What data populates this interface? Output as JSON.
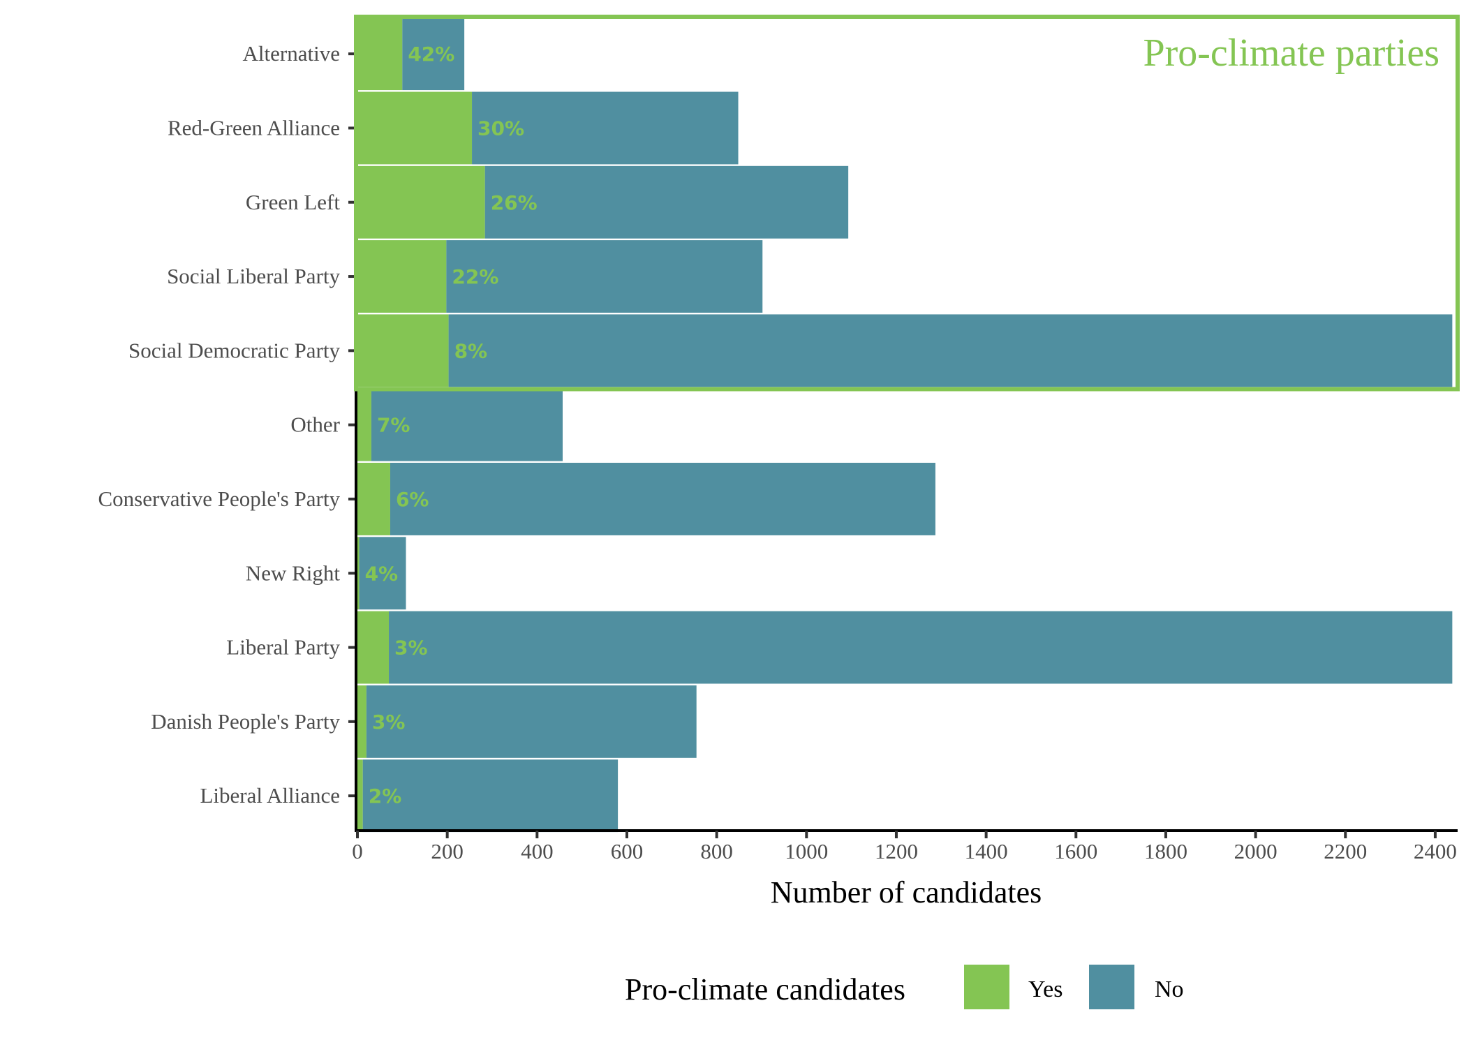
{
  "colors": {
    "yes": "#84c553",
    "no": "#508fa0",
    "highlight": "#84c553",
    "axis": "#000000",
    "label": "#4d4d4d"
  },
  "chart_data": {
    "type": "bar",
    "orientation": "horizontal",
    "stacked": true,
    "title": "",
    "xlabel": "Number of candidates",
    "ylabel": "",
    "xlim": [
      0,
      2450
    ],
    "xticks": [
      0,
      200,
      400,
      600,
      800,
      1000,
      1200,
      1400,
      1600,
      1800,
      2000,
      2200,
      2400
    ],
    "grid": false,
    "categories": [
      "Alternative",
      "Red-Green Alliance",
      "Green Left",
      "Social Liberal Party",
      "Social Democratic Party",
      "Other",
      "Conservative People's Party",
      "New Right",
      "Liberal Party",
      "Danish People's Party",
      "Liberal Alliance"
    ],
    "series": [
      {
        "name": "Yes",
        "values": [
          100,
          255,
          284,
          198,
          203,
          31,
          73,
          4,
          70,
          20,
          12
        ]
      },
      {
        "name": "No",
        "values": [
          138,
          593,
          809,
          704,
          2235,
          426,
          1214,
          104,
          2368,
          735,
          568
        ]
      }
    ],
    "totals": [
      238,
      848,
      1093,
      902,
      2438,
      457,
      1287,
      108,
      2438,
      755,
      580
    ],
    "data_labels": [
      "42%",
      "30%",
      "26%",
      "22%",
      "8%",
      "7%",
      "6%",
      "4%",
      "3%",
      "3%",
      "2%"
    ],
    "legend": {
      "title": "Pro-climate candidates",
      "entries": [
        "Yes",
        "No"
      ],
      "position": "bottom"
    },
    "annotations": [
      {
        "type": "highlight-box",
        "label": "Pro-climate parties",
        "categories": [
          "Alternative",
          "Red-Green Alliance",
          "Green Left",
          "Social Liberal Party",
          "Social Democratic Party"
        ],
        "position": "top-right"
      }
    ]
  }
}
